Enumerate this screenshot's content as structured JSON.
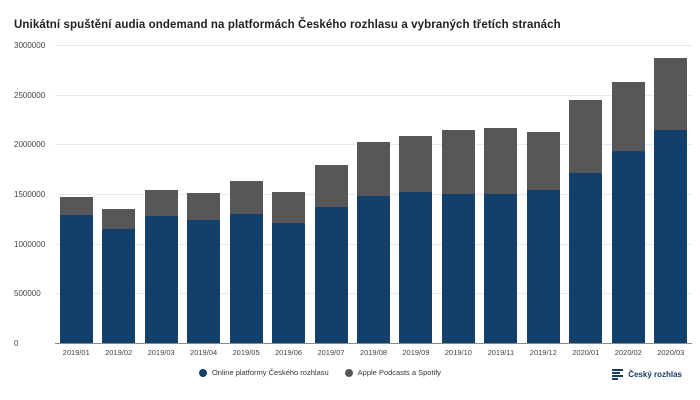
{
  "title": "Unikátní spuštění audia ondemand na platformách Českého rozhlasu a vybraných třetích stranách",
  "colors": {
    "online": "#133f6b",
    "thirdparty": "#575757",
    "gridline": "#e9e9e9",
    "axis_line": "#8a8a8a",
    "title_text": "#212121",
    "tick_text": "#424242",
    "brand_navy": "#15396b"
  },
  "chart_data": {
    "type": "bar",
    "stacked": true,
    "title": "Unikátní spuštění audia ondemand na platformách Českého rozhlasu a vybraných třetích stranách",
    "categories": [
      "2019/01",
      "2019/02",
      "2019/03",
      "2019/04",
      "2019/05",
      "2019/06",
      "2019/07",
      "2019/08",
      "2019/09",
      "2019/10",
      "2019/11",
      "2019/12",
      "2020/01",
      "2020/02",
      "2020/03"
    ],
    "series": [
      {
        "name": "Online platformy Českého rozhlasu",
        "color": "#133f6b",
        "values": [
          1290000,
          1150000,
          1280000,
          1240000,
          1300000,
          1210000,
          1370000,
          1480000,
          1520000,
          1500000,
          1500000,
          1540000,
          1710000,
          1930000,
          2140000
        ]
      },
      {
        "name": "Apple Podcasts a Spotify",
        "color": "#575757",
        "values": [
          180000,
          200000,
          260000,
          270000,
          330000,
          310000,
          420000,
          540000,
          560000,
          640000,
          660000,
          580000,
          740000,
          700000,
          730000
        ]
      }
    ],
    "xlabel": "",
    "ylabel": "",
    "ylim": [
      0,
      3000000
    ],
    "yticks": [
      "0",
      "500000",
      "1000000",
      "1500000",
      "2000000",
      "2500000",
      "3000000"
    ],
    "grid": true,
    "legend_position": "bottom"
  },
  "legend": {
    "items": [
      {
        "label": "Online platformy Českého rozhlasu"
      },
      {
        "label": "Apple Podcasts a Spotify"
      }
    ]
  },
  "footer": {
    "logo_text": "Český rozhlas"
  }
}
